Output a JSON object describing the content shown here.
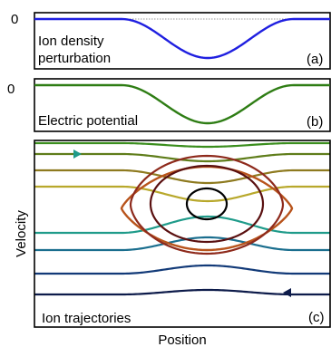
{
  "panel_a": {
    "zero_label": "0",
    "text_line1": "Ion density",
    "text_line2": "perturbation",
    "tag": "(a)",
    "curve_color": "#1f1fe0"
  },
  "panel_b": {
    "zero_label": "0",
    "text": "Electric potential",
    "tag": "(b)",
    "curve_color": "#2e7d14"
  },
  "panel_c": {
    "text": "Ion trajectories",
    "tag": "(c)",
    "y_axis_label": "Velocity",
    "x_axis_label": "Position",
    "passing_colors": [
      "#0d1b4a",
      "#123a78",
      "#1a6e8e",
      "#1f9b8a",
      "#3fae6a",
      "#89b23e",
      "#b8a82b",
      "#8e7a1f",
      "#5f7d1a",
      "#3b8e1e",
      "#2a9a7e",
      "#2a8a8e"
    ],
    "trapped_colors": [
      "#b8541c",
      "#8e2a1c",
      "#5a1010",
      "#000000"
    ]
  }
}
